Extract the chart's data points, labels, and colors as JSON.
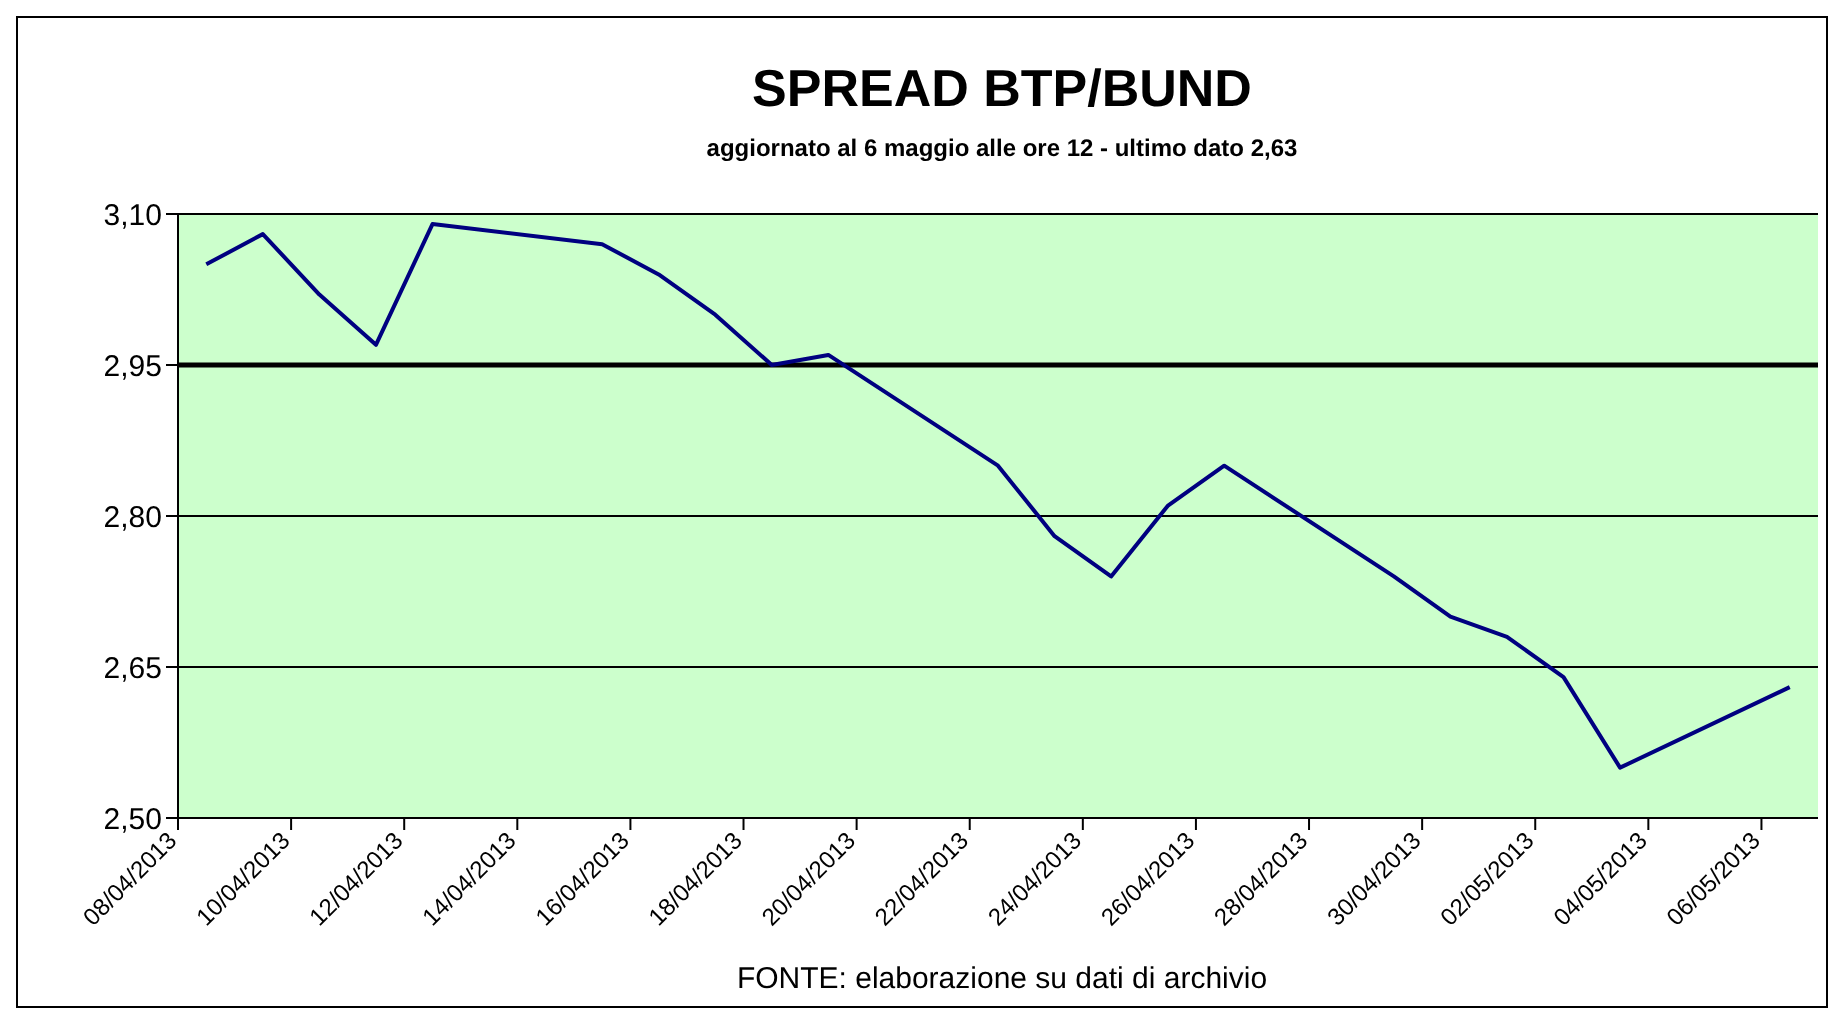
{
  "chart_data": {
    "type": "line",
    "title": "SPREAD  BTP/BUND",
    "subtitle": "aggiornato al 6 maggio alle ore 12 - ultimo dato 2,63",
    "x": [
      "2013-04-08T12:00",
      "2013-04-09T12:00",
      "2013-04-10T12:00",
      "2013-04-11T12:00",
      "2013-04-12T12:00",
      "2013-04-15T12:00",
      "2013-04-16T12:00",
      "2013-04-17T12:00",
      "2013-04-18T12:00",
      "2013-04-19T12:00",
      "2013-04-22T12:00",
      "2013-04-23T12:00",
      "2013-04-24T12:00",
      "2013-04-25T12:00",
      "2013-04-26T12:00",
      "2013-04-29T12:00",
      "2013-04-30T12:00",
      "2013-05-01T12:00",
      "2013-05-02T12:00",
      "2013-05-03T12:00",
      "2013-05-06T12:00"
    ],
    "series": [
      {
        "color": "#000080",
        "values": [
          3.05,
          3.08,
          3.02,
          2.97,
          3.09,
          3.07,
          3.04,
          3.0,
          2.95,
          2.96,
          2.85,
          2.78,
          2.74,
          2.81,
          2.85,
          2.74,
          2.7,
          2.68,
          2.64,
          2.55,
          2.63
        ]
      }
    ],
    "ylim": [
      2.5,
      3.1
    ],
    "yticks": [
      {
        "value": 2.5,
        "label": "2,50"
      },
      {
        "value": 2.65,
        "label": "2,65"
      },
      {
        "value": 2.8,
        "label": "2,80"
      },
      {
        "value": 2.95,
        "label": "2,95"
      },
      {
        "value": 3.1,
        "label": "3,10"
      }
    ],
    "xlim": [
      "2013-04-08",
      "2013-05-07"
    ],
    "xticks": [
      {
        "value": "2013-04-08",
        "label": "08/04/2013"
      },
      {
        "value": "2013-04-10",
        "label": "10/04/2013"
      },
      {
        "value": "2013-04-12",
        "label": "12/04/2013"
      },
      {
        "value": "2013-04-14",
        "label": "14/04/2013"
      },
      {
        "value": "2013-04-16",
        "label": "16/04/2013"
      },
      {
        "value": "2013-04-18",
        "label": "18/04/2013"
      },
      {
        "value": "2013-04-20",
        "label": "20/04/2013"
      },
      {
        "value": "2013-04-22",
        "label": "22/04/2013"
      },
      {
        "value": "2013-04-24",
        "label": "24/04/2013"
      },
      {
        "value": "2013-04-26",
        "label": "26/04/2013"
      },
      {
        "value": "2013-04-28",
        "label": "28/04/2013"
      },
      {
        "value": "2013-04-30",
        "label": "30/04/2013"
      },
      {
        "value": "2013-05-02",
        "label": "02/05/2013"
      },
      {
        "value": "2013-05-04",
        "label": "04/05/2013"
      },
      {
        "value": "2013-05-06",
        "label": "06/05/2013"
      }
    ],
    "ref_lines": [
      {
        "axis": "y",
        "value": 2.95,
        "color": "#000000"
      }
    ],
    "grid": "y",
    "marker": "none",
    "line_style": "solid",
    "annotations": [
      "FONTE: elaborazione su dati di archivio"
    ]
  }
}
